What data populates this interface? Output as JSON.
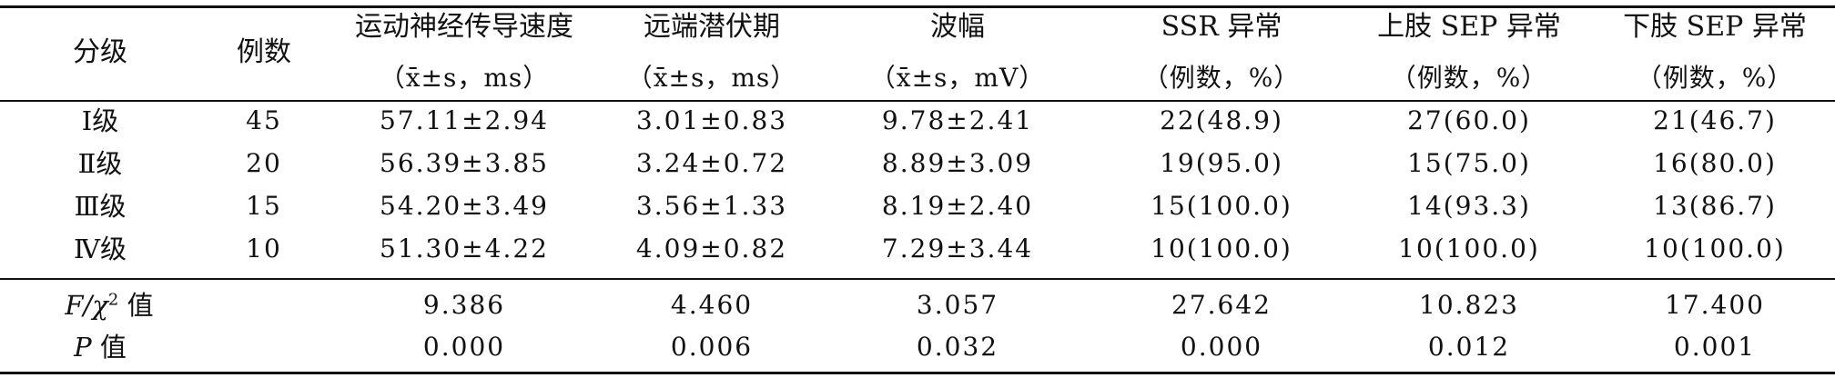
{
  "headers": {
    "grade": "分级",
    "cases": "例数",
    "mcv": "运动神经传导速度",
    "mcv_unit": "（x̄±s，ms）",
    "latency": "远端潜伏期",
    "latency_unit": "（x̄±s，ms）",
    "amp": "波幅",
    "amp_unit": "（x̄±s，mV）",
    "ssr": "SSR 异常",
    "ssr_unit": "（例数，%）",
    "upper": "上肢 SEP 异常",
    "upper_unit": "（例数，%）",
    "lower": "下肢 SEP 异常",
    "lower_unit": "（例数，%）"
  },
  "rows": [
    {
      "grade": "Ⅰ级",
      "n": "45",
      "mcv": "57.11±2.94",
      "lat": "3.01±0.83",
      "amp": "9.78±2.41",
      "ssr": "22(48.9)",
      "up": "27(60.0)",
      "low": "21(46.7)"
    },
    {
      "grade": "Ⅱ级",
      "n": "20",
      "mcv": "56.39±3.85",
      "lat": "3.24±0.72",
      "amp": "8.89±3.09",
      "ssr": "19(95.0)",
      "up": "15(75.0)",
      "low": "16(80.0)"
    },
    {
      "grade": "Ⅲ级",
      "n": "15",
      "mcv": "54.20±3.49",
      "lat": "3.56±1.33",
      "amp": "8.19±2.40",
      "ssr": "15(100.0)",
      "up": "14(93.3)",
      "low": "13(86.7)"
    },
    {
      "grade": "Ⅳ级",
      "n": "10",
      "mcv": "51.30±4.22",
      "lat": "4.09±0.82",
      "amp": "7.29±3.44",
      "ssr": "10(100.0)",
      "up": "10(100.0)",
      "low": "10(100.0)"
    }
  ],
  "stats": {
    "f_label": "F/χ",
    "f_sup": "2",
    "f_suffix": " 值",
    "f_values": [
      "9.386",
      "4.460",
      "3.057",
      "27.642",
      "10.823",
      "17.400"
    ],
    "p_label": "P",
    "p_suffix": " 值",
    "p_values": [
      "0.000",
      "0.006",
      "0.032",
      "0.000",
      "0.012",
      "0.001"
    ]
  }
}
